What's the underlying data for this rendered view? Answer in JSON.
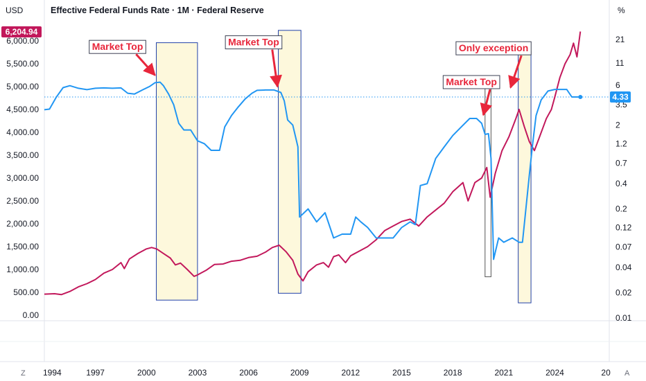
{
  "chart_data": {
    "type": "line",
    "title": "Effective Federal Funds Rate · 1M · Federal Reserve",
    "left_axis_unit": "USD",
    "right_axis_unit": "%",
    "left_ticks": [
      "6,000.00",
      "5,500.00",
      "5,000.00",
      "4,500.00",
      "4,000.00",
      "3,500.00",
      "3,000.00",
      "2,500.00",
      "2,000.00",
      "1,500.00",
      "1,000.00",
      "500.00",
      "0.00"
    ],
    "left_tick_values": [
      6000,
      5500,
      5000,
      4500,
      4000,
      3500,
      3000,
      2500,
      2000,
      1500,
      1000,
      500,
      0
    ],
    "left_ylim": [
      0,
      6000
    ],
    "right_ticks": [
      "21",
      "11",
      "6",
      "3.5",
      "2",
      "1.2",
      "0.7",
      "0.4",
      "0.2",
      "0.12",
      "0.07",
      "0.04",
      "0.02",
      "0.01"
    ],
    "right_tick_values": [
      21,
      11,
      6,
      3.5,
      2,
      1.2,
      0.7,
      0.4,
      0.2,
      0.12,
      0.07,
      0.04,
      0.02,
      0.01
    ],
    "right_scale": "log",
    "x_ticks": [
      "1994",
      "1997",
      "2000",
      "2003",
      "2006",
      "2009",
      "2012",
      "2015",
      "2018",
      "2021",
      "2024",
      "20"
    ],
    "x_tick_values": [
      1994,
      1997,
      2000,
      2003,
      2006,
      2009,
      2012,
      2015,
      2018,
      2021,
      2024,
      2027
    ],
    "xlim": [
      1994,
      2027.2
    ],
    "series": [
      {
        "axis": "left",
        "color": "#c2185b",
        "last_value_label": "6,204.94",
        "x": [
          1994.0,
          1994.6,
          1995.0,
          1995.5,
          1996.0,
          1996.5,
          1997.0,
          1997.5,
          1998.0,
          1998.5,
          1998.7,
          1999.0,
          1999.5,
          2000.0,
          2000.3,
          2000.6,
          2001.0,
          2001.4,
          2001.7,
          2002.0,
          2002.4,
          2002.8,
          2003.0,
          2003.5,
          2004.0,
          2004.5,
          2005.0,
          2005.5,
          2006.0,
          2006.5,
          2007.0,
          2007.4,
          2007.8,
          2008.2,
          2008.6,
          2008.9,
          2009.2,
          2009.5,
          2010.0,
          2010.4,
          2010.7,
          2011.0,
          2011.3,
          2011.7,
          2012.0,
          2012.5,
          2013.0,
          2013.5,
          2014.0,
          2014.5,
          2015.0,
          2015.5,
          2016.0,
          2016.5,
          2017.0,
          2017.5,
          2018.0,
          2018.6,
          2018.9,
          2019.3,
          2019.7,
          2020.0,
          2020.2,
          2020.5,
          2020.9,
          2021.3,
          2021.7,
          2021.9,
          2022.2,
          2022.5,
          2022.8,
          2023.1,
          2023.5,
          2023.8,
          2024.0,
          2024.3,
          2024.6,
          2024.9,
          2025.1,
          2025.3,
          2025.5
        ],
        "y": [
          460,
          470,
          450,
          520,
          620,
          690,
          780,
          920,
          1000,
          1150,
          1020,
          1230,
          1350,
          1450,
          1480,
          1450,
          1350,
          1250,
          1100,
          1140,
          1000,
          850,
          880,
          980,
          1110,
          1120,
          1180,
          1200,
          1260,
          1290,
          1380,
          1480,
          1530,
          1390,
          1200,
          900,
          750,
          950,
          1100,
          1150,
          1050,
          1280,
          1320,
          1150,
          1300,
          1400,
          1500,
          1650,
          1850,
          1950,
          2050,
          2100,
          1950,
          2150,
          2300,
          2450,
          2700,
          2900,
          2500,
          2900,
          3000,
          3230,
          2580,
          3100,
          3600,
          3900,
          4290,
          4500,
          4130,
          3800,
          3600,
          3900,
          4300,
          4500,
          4770,
          5200,
          5500,
          5700,
          5950,
          5650,
          6204.94
        ]
      },
      {
        "axis": "right",
        "color": "#2196f3",
        "last_value_label": "4.33",
        "x": [
          1994.0,
          1994.3,
          1994.7,
          1995.1,
          1995.5,
          1996.0,
          1996.5,
          1997.0,
          1997.5,
          1998.0,
          1998.5,
          1998.9,
          1999.3,
          1999.8,
          2000.2,
          2000.5,
          2000.8,
          2001.0,
          2001.3,
          2001.6,
          2001.9,
          2002.2,
          2002.6,
          2003.0,
          2003.4,
          2003.8,
          2004.3,
          2004.6,
          2005.0,
          2005.4,
          2005.8,
          2006.2,
          2006.5,
          2007.0,
          2007.5,
          2007.9,
          2008.1,
          2008.3,
          2008.6,
          2008.9,
          2009.0,
          2009.5,
          2010.0,
          2010.5,
          2011.0,
          2011.5,
          2012.0,
          2012.3,
          2012.6,
          2013.0,
          2013.5,
          2014.0,
          2014.5,
          2015.0,
          2015.5,
          2015.8,
          2016.1,
          2016.5,
          2017.0,
          2017.5,
          2018.0,
          2018.5,
          2019.0,
          2019.4,
          2019.7,
          2019.9,
          2020.1,
          2020.25,
          2020.4,
          2020.7,
          2021.0,
          2021.5,
          2021.9,
          2022.1,
          2022.3,
          2022.5,
          2022.7,
          2022.9,
          2023.2,
          2023.6,
          2024.0,
          2024.4,
          2024.7,
          2025.0,
          2025.5
        ],
        "y": [
          3.05,
          3.1,
          4.3,
          5.6,
          5.9,
          5.5,
          5.3,
          5.5,
          5.55,
          5.5,
          5.55,
          4.8,
          4.7,
          5.3,
          5.8,
          6.4,
          6.5,
          5.9,
          4.7,
          3.5,
          2.1,
          1.75,
          1.75,
          1.3,
          1.2,
          1.0,
          1.0,
          1.9,
          2.6,
          3.3,
          4.1,
          4.8,
          5.2,
          5.25,
          5.25,
          4.9,
          3.9,
          2.3,
          2.0,
          1.1,
          0.16,
          0.2,
          0.14,
          0.18,
          0.09,
          0.1,
          0.1,
          0.16,
          0.14,
          0.12,
          0.09,
          0.09,
          0.09,
          0.12,
          0.14,
          0.13,
          0.38,
          0.4,
          0.8,
          1.1,
          1.5,
          1.9,
          2.4,
          2.4,
          2.1,
          1.55,
          1.58,
          0.8,
          0.05,
          0.09,
          0.08,
          0.09,
          0.08,
          0.08,
          0.2,
          0.5,
          1.2,
          2.6,
          4.0,
          5.1,
          5.33,
          5.33,
          5.33,
          4.33,
          4.33
        ]
      }
    ],
    "shaded_periods": [
      {
        "start": 2000.58,
        "end": 2003.0,
        "ylim_left": [
          330,
          5960
        ],
        "fill": "#fdf8dc",
        "stroke": "#1f3fa8"
      },
      {
        "start": 2007.75,
        "end": 2009.08,
        "ylim_left": [
          480,
          6230
        ],
        "fill": "#fdf8dc",
        "stroke": "#1f3fa8"
      },
      {
        "start": 2019.9,
        "end": 2020.25,
        "ylim_left": [
          840,
          5070
        ],
        "fill": "#ffffff",
        "stroke": "#555555"
      },
      {
        "start": 2021.85,
        "end": 2022.6,
        "ylim_left": [
          270,
          5770
        ],
        "fill": "#fdf8dc",
        "stroke": "#1f3fa8"
      }
    ],
    "annotations": [
      {
        "text": "Market Top",
        "anchor_year": 1998.3,
        "anchor_value": 5800,
        "arrow_to_year": 2000.5,
        "arrow_to_value": 5250
      },
      {
        "text": "Market Top",
        "anchor_year": 2006.3,
        "anchor_value": 5900,
        "arrow_to_year": 2007.7,
        "arrow_to_value": 5000
      },
      {
        "text": "Only exception",
        "anchor_year": 2020.4,
        "anchor_value": 5770,
        "arrow_to_year": 2021.4,
        "arrow_to_value": 4980
      },
      {
        "text": "Market Top",
        "anchor_year": 2019.1,
        "anchor_value": 5030,
        "arrow_to_year": 2019.8,
        "arrow_to_value": 4380
      }
    ],
    "reference_line": {
      "axis": "right",
      "value": 4.33,
      "style": "dotted",
      "color": "#2196f3"
    },
    "corner_labels": {
      "left": "Z",
      "right": "A"
    },
    "grid": false,
    "legend": "none"
  }
}
